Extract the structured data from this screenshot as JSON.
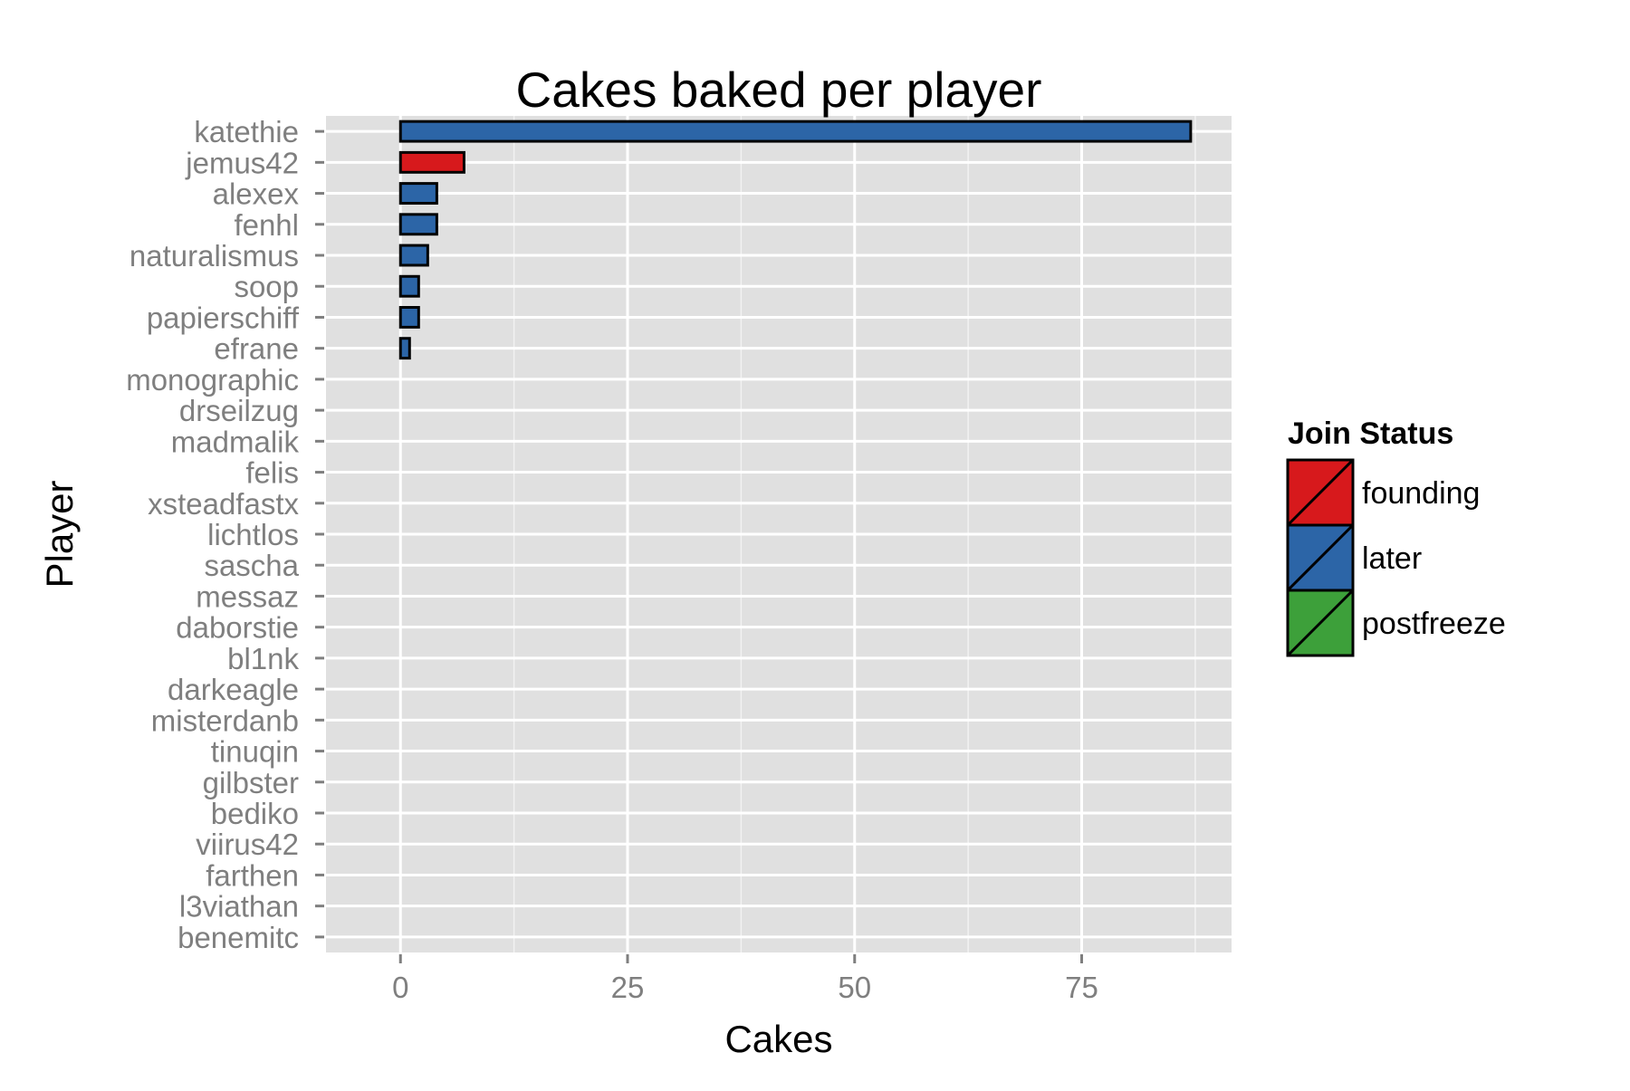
{
  "chart_data": {
    "type": "bar",
    "orientation": "horizontal",
    "title": "Cakes baked per player",
    "xlabel": "Cakes",
    "ylabel": "Player",
    "xlim": [
      -8.2,
      91.5
    ],
    "xticks": [
      0,
      25,
      50,
      75
    ],
    "xtick_labels": [
      "0",
      "25",
      "50",
      "75"
    ],
    "grid": true,
    "legend_placement": "right",
    "legend": {
      "title": "Join Status",
      "entries": [
        {
          "label": "founding",
          "color": "#d7191c"
        },
        {
          "label": "later",
          "color": "#2c65a7"
        },
        {
          "label": "postfreeze",
          "color": "#3da03a"
        }
      ]
    },
    "categories": [
      "katethie",
      "jemus42",
      "alexex",
      "fenhl",
      "naturalismus",
      "soop",
      "papierschiff",
      "efrane",
      "monographic",
      "drseilzug",
      "madmalik",
      "felis",
      "xsteadfastx",
      "lichtlos",
      "sascha",
      "messaz",
      "daborstie",
      "bl1nk",
      "darkeagle",
      "misterdanb",
      "tinuqin",
      "gilbster",
      "bediko",
      "viirus42",
      "farthen",
      "l3viathan",
      "benemitc"
    ],
    "values": [
      87,
      7,
      4,
      4,
      3,
      2,
      2,
      1,
      0,
      0,
      0,
      0,
      0,
      0,
      0,
      0,
      0,
      0,
      0,
      0,
      0,
      0,
      0,
      0,
      0,
      0,
      0
    ],
    "groups": [
      "later",
      "founding",
      "later",
      "later",
      "later",
      "later",
      "later",
      "later",
      "later",
      "later",
      "later",
      "later",
      "later",
      "later",
      "later",
      "later",
      "later",
      "later",
      "later",
      "later",
      "later",
      "later",
      "later",
      "later",
      "later",
      "later",
      "later"
    ]
  },
  "colors": {
    "panel": "#e0e0e0",
    "grid": "#ffffff",
    "bar_outline": "#000000"
  }
}
